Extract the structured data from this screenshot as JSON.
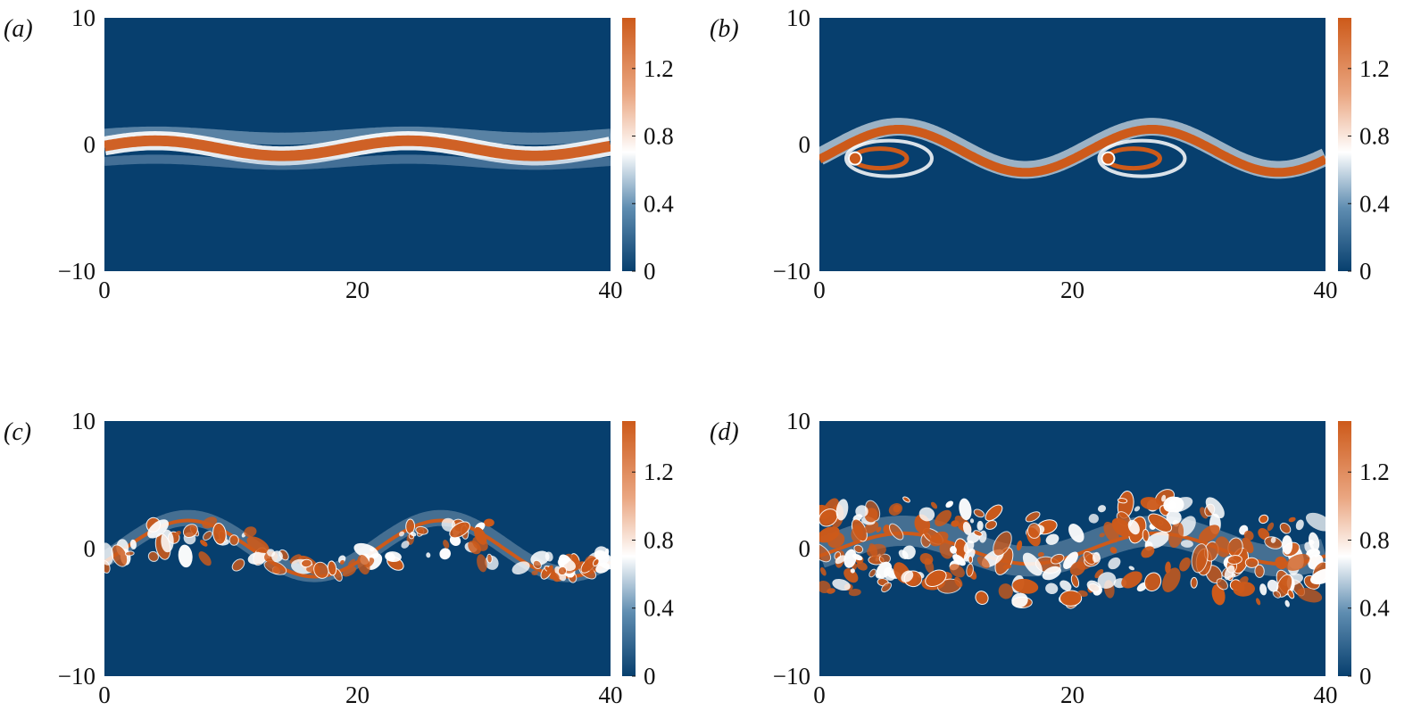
{
  "chart_data": [
    {
      "type": "heatmap",
      "panel_label": "(a)",
      "xlim": [
        0,
        40
      ],
      "ylim": [
        -10,
        10
      ],
      "x_ticks": [
        "0",
        "20",
        "40"
      ],
      "y_ticks": [
        "10",
        "0",
        "−10"
      ],
      "colorbar": {
        "range": [
          0,
          1.5
        ],
        "ticks": [
          "1.2",
          "0.8",
          "0.4",
          "0"
        ]
      },
      "colormap": {
        "low": "#073f6e",
        "mid": "#ffffff",
        "high": "#cd5a1a"
      },
      "layer": {
        "stage": "wavy band",
        "center_y": -0.3,
        "thickness": 1.2,
        "amplitude": 0.6,
        "wavelength": 20
      }
    },
    {
      "type": "heatmap",
      "panel_label": "(b)",
      "xlim": [
        0,
        40
      ],
      "ylim": [
        -10,
        10
      ],
      "x_ticks": [
        "0",
        "20",
        "40"
      ],
      "y_ticks": [
        "10",
        "0",
        "−10"
      ],
      "colorbar": {
        "range": [
          0,
          1.5
        ],
        "ticks": [
          "1.2",
          "0.8",
          "0.4",
          "0"
        ]
      },
      "colormap": {
        "low": "#073f6e",
        "mid": "#ffffff",
        "high": "#cd5a1a"
      },
      "layer": {
        "stage": "rolled braids",
        "center_y": -0.5,
        "thickness": 0.7,
        "amplitude": 1.7,
        "wavelength": 20
      }
    },
    {
      "type": "heatmap",
      "panel_label": "(c)",
      "xlim": [
        0,
        40
      ],
      "ylim": [
        -10,
        10
      ],
      "x_ticks": [
        "0",
        "20",
        "40"
      ],
      "y_ticks": [
        "10",
        "0",
        "−10"
      ],
      "colorbar": {
        "range": [
          0,
          1.5
        ],
        "ticks": [
          "1.2",
          "0.8",
          "0.4",
          "0"
        ]
      },
      "colormap": {
        "low": "#073f6e",
        "mid": "#ffffff",
        "high": "#cd5a1a"
      },
      "layer": {
        "stage": "vortex roll-up",
        "center_y": -0.2,
        "thickness": 0.5,
        "amplitude": 2.2,
        "wavelength": 20
      }
    },
    {
      "type": "heatmap",
      "panel_label": "(d)",
      "xlim": [
        0,
        40
      ],
      "ylim": [
        -10,
        10
      ],
      "x_ticks": [
        "0",
        "20",
        "40"
      ],
      "y_ticks": [
        "10",
        "0",
        "−10"
      ],
      "colorbar": {
        "range": [
          0,
          1.5
        ],
        "ticks": [
          "1.2",
          "0.8",
          "0.4",
          "0"
        ]
      },
      "colormap": {
        "low": "#073f6e",
        "mid": "#ffffff",
        "high": "#cd5a1a"
      },
      "layer": {
        "stage": "turbulent mixing",
        "center_y": -0.2,
        "thickness": 3.5,
        "amplitude": 1.2,
        "wavelength": 20
      }
    }
  ]
}
